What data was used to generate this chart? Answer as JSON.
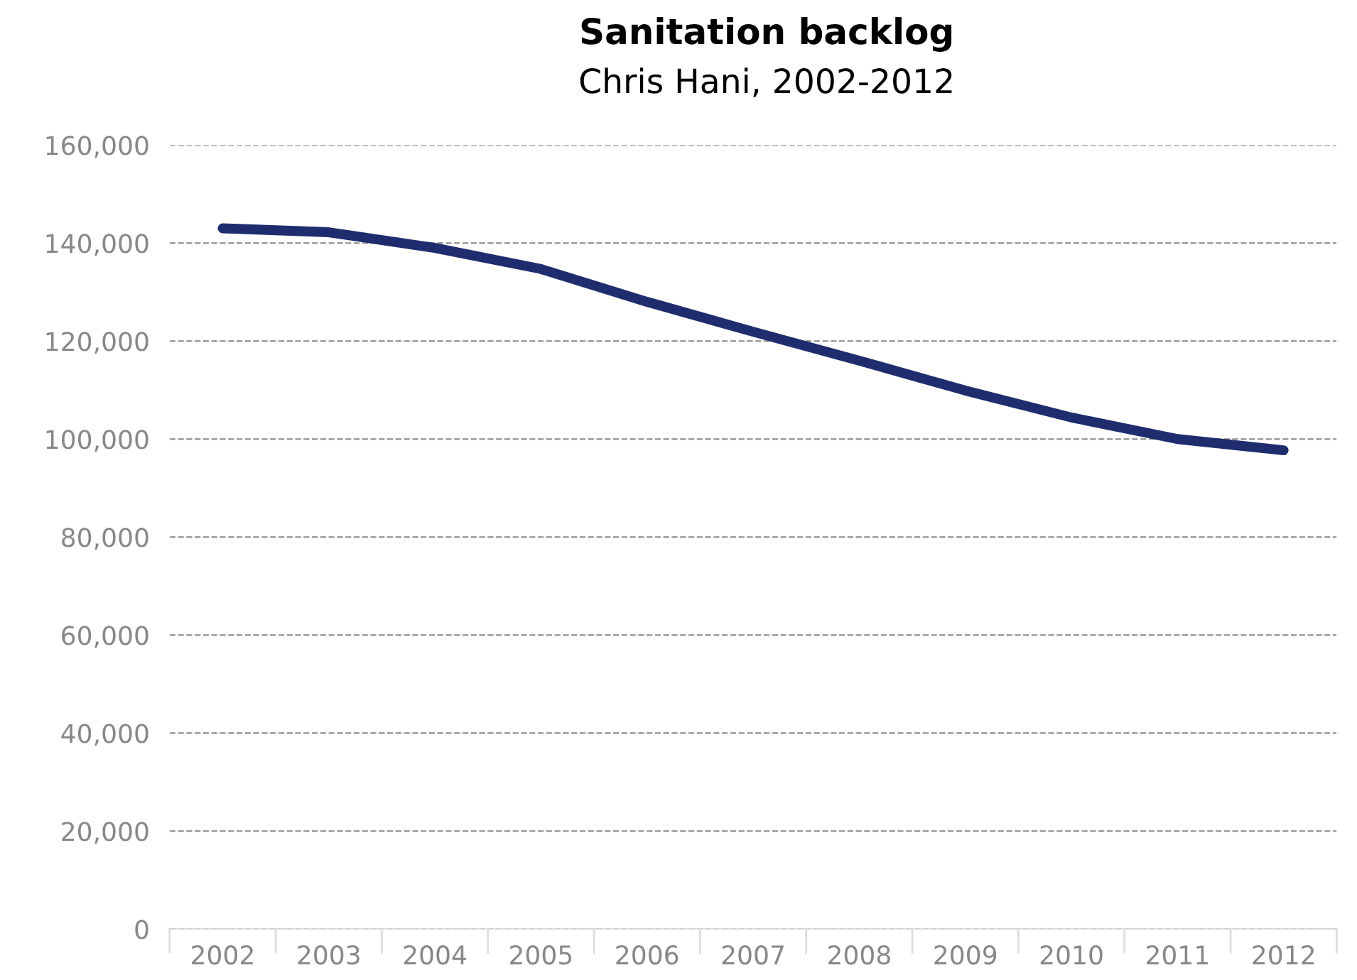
{
  "chart_data": {
    "type": "line",
    "title": "Sanitation backlog",
    "subtitle": "Chris Hani, 2002-2012",
    "categories": [
      "2002",
      "2003",
      "2004",
      "2005",
      "2006",
      "2007",
      "2008",
      "2009",
      "2010",
      "2011",
      "2012"
    ],
    "series": [
      {
        "color": "#1f2d6e",
        "values": [
          143000,
          142200,
          139000,
          134700,
          128000,
          121900,
          116000,
          109900,
          104400,
          100000,
          97700
        ]
      }
    ],
    "ylim": [
      0,
      160000
    ],
    "yticks": [
      {
        "value": 0,
        "label": "0"
      },
      {
        "value": 20000,
        "label": "20,000"
      },
      {
        "value": 40000,
        "label": "40,000"
      },
      {
        "value": 60000,
        "label": "60,000"
      },
      {
        "value": 80000,
        "label": "80,000"
      },
      {
        "value": 100000,
        "label": "100,000"
      },
      {
        "value": 120000,
        "label": "120,000"
      },
      {
        "value": 140000,
        "label": "140,000"
      },
      {
        "value": 160000,
        "label": "160,000"
      }
    ],
    "grid": "y",
    "marker": "none",
    "line_style": "solid"
  }
}
